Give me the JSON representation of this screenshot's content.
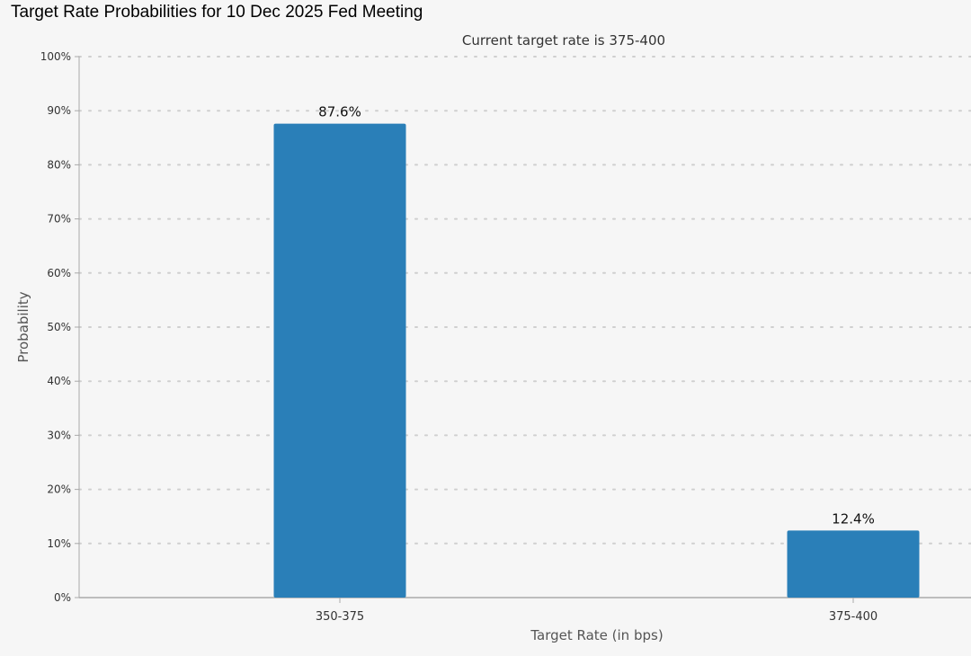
{
  "page": {
    "title": "Target Rate Probabilities for 10 Dec 2025 Fed Meeting"
  },
  "chart_data": {
    "type": "bar",
    "title": "Target Rate Probabilities for 10 Dec 2025 Fed Meeting",
    "subtitle": "Current target rate is 375-400",
    "xlabel": "Target Rate (in bps)",
    "ylabel": "Probability",
    "categories": [
      "350-375",
      "375-400"
    ],
    "values": [
      87.6,
      12.4
    ],
    "data_labels": [
      "87.6%",
      "12.4%"
    ],
    "ylim": [
      0,
      100
    ],
    "yticks": [
      0,
      10,
      20,
      30,
      40,
      50,
      60,
      70,
      80,
      90,
      100
    ],
    "ytick_labels": [
      "0%",
      "10%",
      "20%",
      "30%",
      "40%",
      "50%",
      "60%",
      "70%",
      "80%",
      "90%",
      "100%"
    ],
    "grid": true,
    "grid_style": "dotted",
    "legend": "none",
    "colors": {
      "bar": "#2a7fb8",
      "background": "#f6f6f6",
      "grid": "#cfcfcf",
      "axis": "#aaaaaa",
      "text": "#333333"
    }
  }
}
